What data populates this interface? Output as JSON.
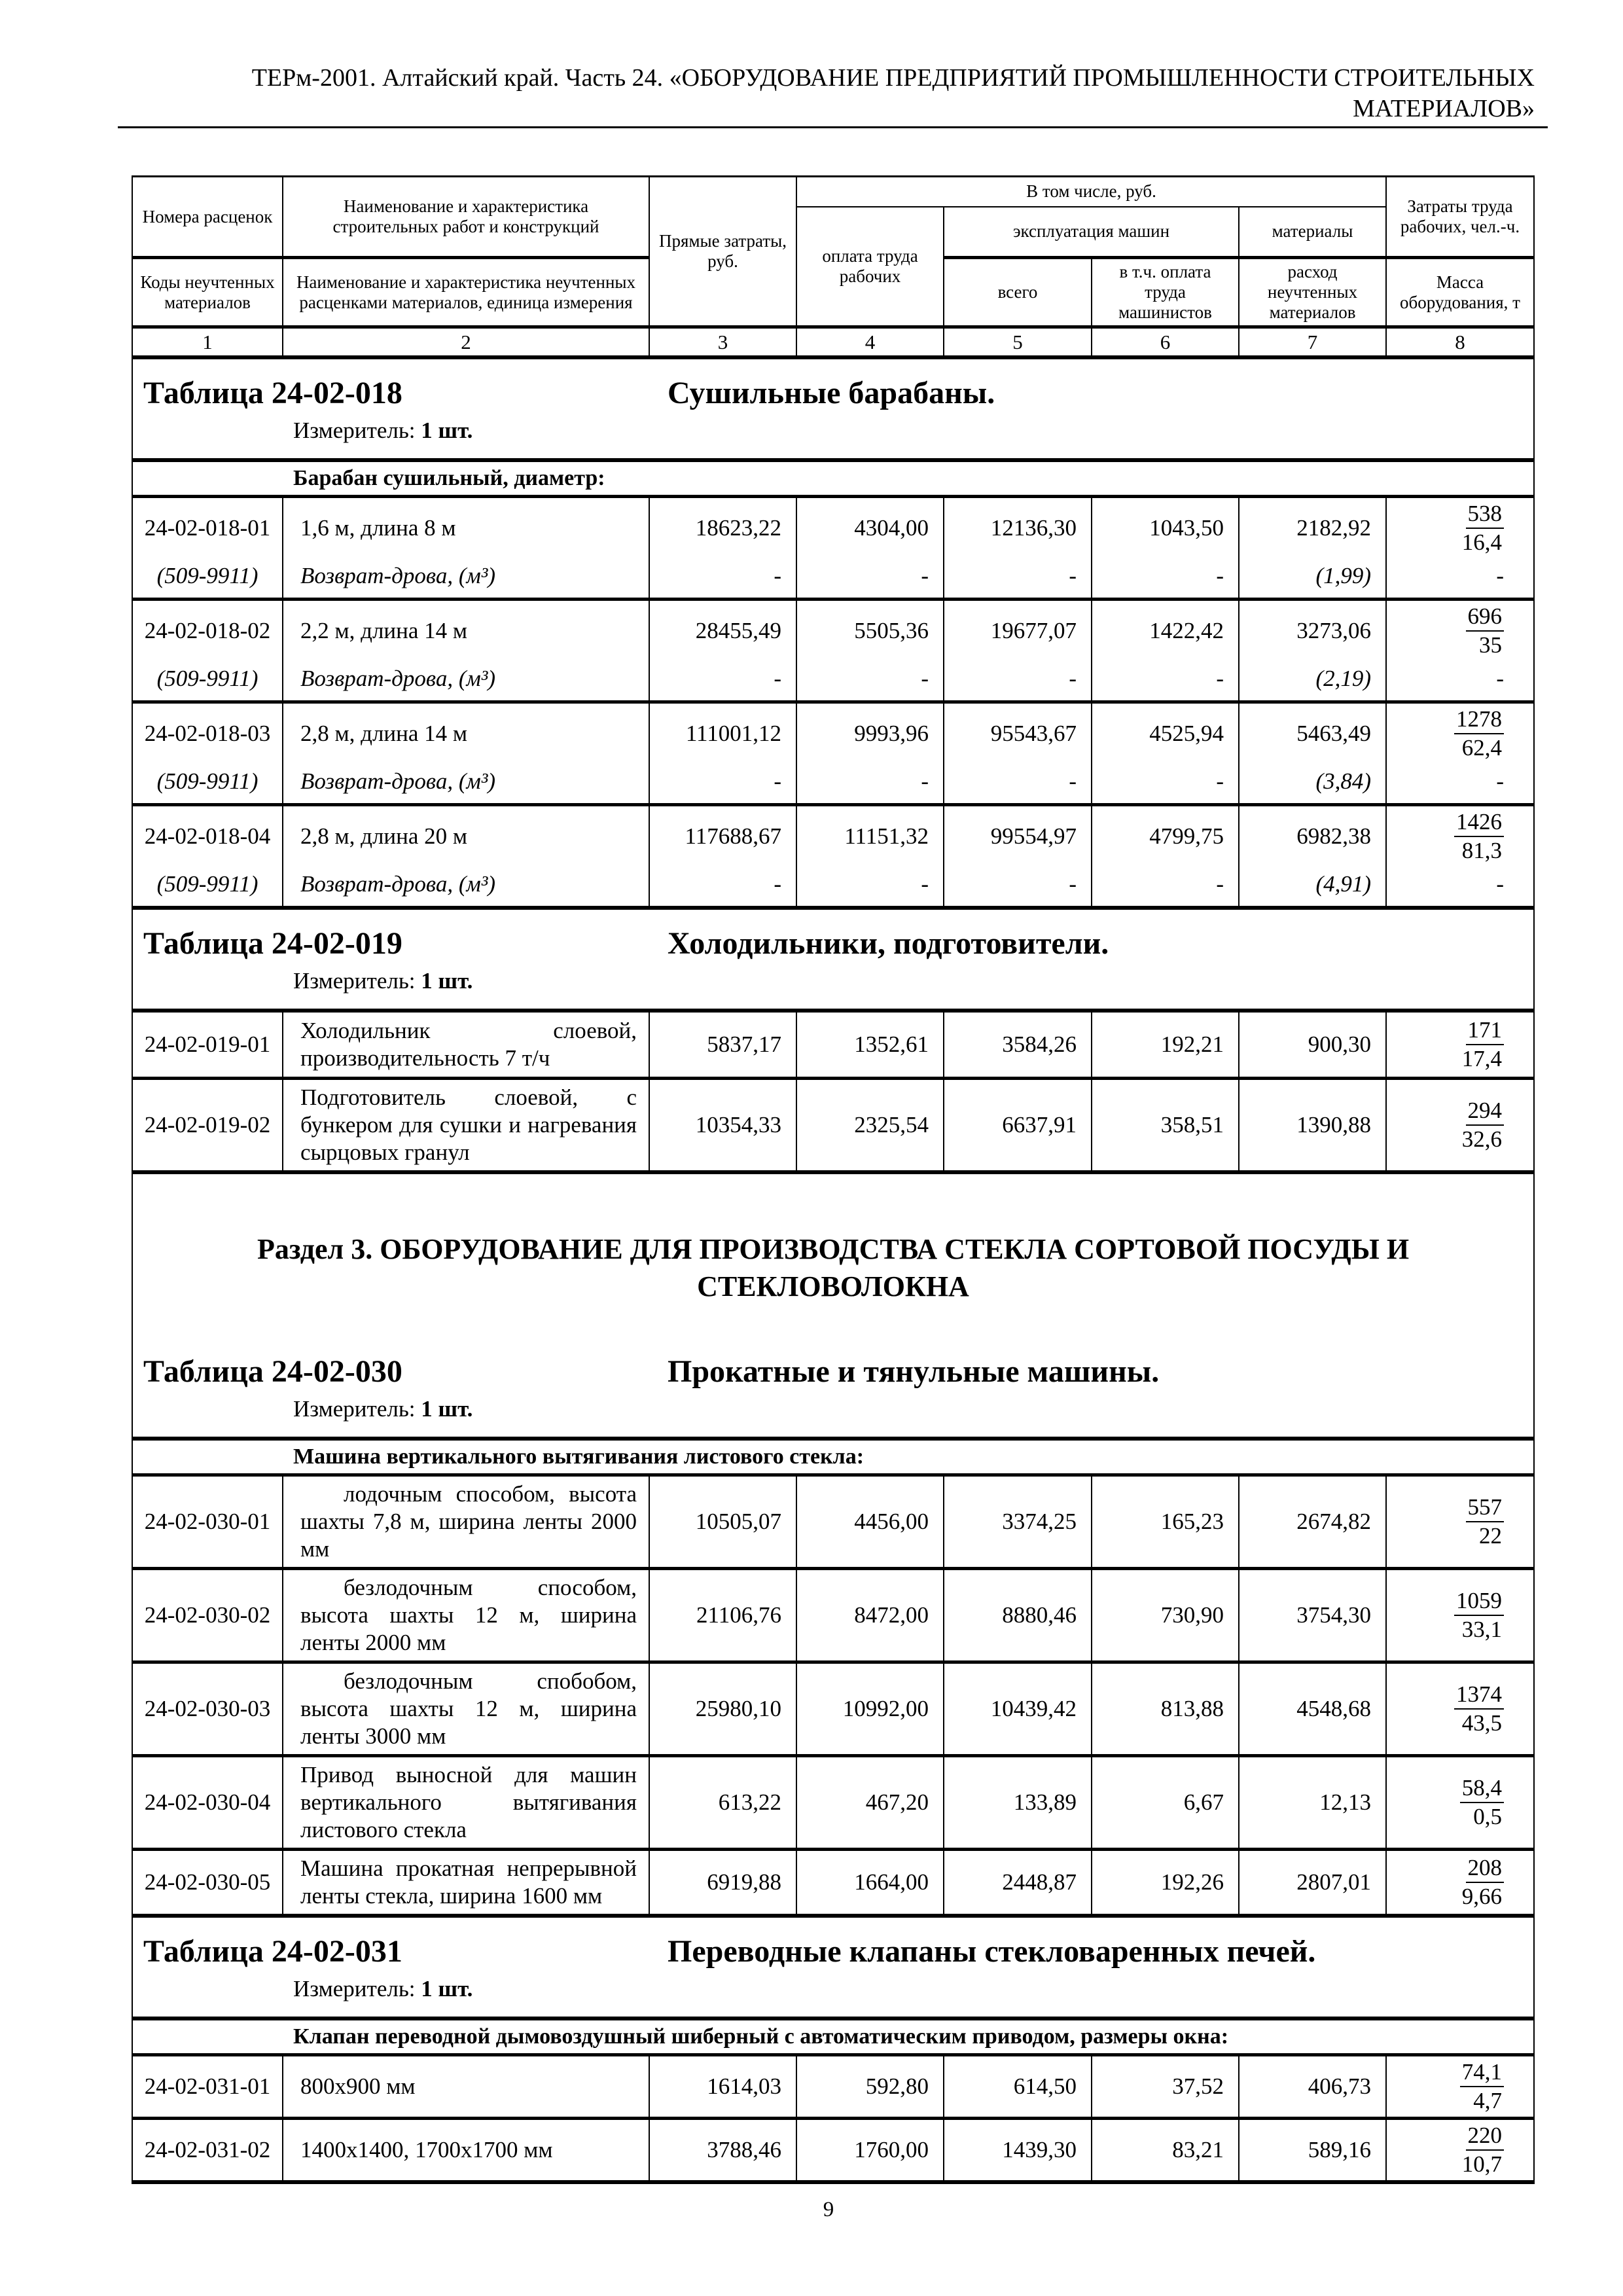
{
  "page": {
    "header_title": "ТЕРм-2001. Алтайский край. Часть 24. «ОБОРУДОВАНИЕ ПРЕДПРИЯТИЙ ПРОМЫШЛЕННОСТИ СТРОИТЕЛЬНЫХ МАТЕРИАЛОВ»",
    "page_number": "9"
  },
  "table_header": {
    "col1_top": "Номера расценок",
    "col1_bottom": "Коды неучтенных материалов",
    "col2_top": "Наименование и характеристика строительных работ и конструкций",
    "col2_bottom": "Наименование и характеристика неучтенных расценками материалов, единица измерения",
    "col3": "Прямые затраты, руб.",
    "group_including": "В том числе, руб.",
    "col4": "оплата труда рабочих",
    "group_machines": "эксплуатация машин",
    "col5": "всего",
    "col6": "в т.ч. оплата труда машинистов",
    "col7_top": "материалы",
    "col7_bottom": "расход неучтенных материалов",
    "col8_top": "Затраты труда рабочих, чел.-ч.",
    "col8_bottom": "Масса оборудования, т",
    "numbers": [
      "1",
      "2",
      "3",
      "4",
      "5",
      "6",
      "7",
      "8"
    ]
  },
  "section3_heading": "Раздел 3. ОБОРУДОВАНИЕ ДЛЯ ПРОИЗВОДСТВА СТЕКЛА СОРТОВОЙ ПОСУДЫ И СТЕКЛОВОЛОКНА",
  "tables": [
    {
      "key": "t018",
      "title_label": "Таблица 24-02-018",
      "title_text": "Сушильные барабаны.",
      "measure_label": "Измеритель:",
      "measure_value": "1 шт.",
      "section_row": "Барабан сушильный, диаметр:",
      "rows": [
        {
          "code": "24-02-018-01",
          "desc": "1,6 м, длина 8 м",
          "values": [
            "18623,22",
            "4304,00",
            "12136,30",
            "1043,50",
            "2182,92"
          ],
          "labor_top": "538",
          "labor_bottom": "16,4",
          "ret": {
            "code": "(509-9911)",
            "desc": "Возврат-дрова, (м³)",
            "values": [
              "-",
              "-",
              "-",
              "-",
              "(1,99)"
            ],
            "labor": "-"
          }
        },
        {
          "code": "24-02-018-02",
          "desc": "2,2 м, длина 14 м",
          "values": [
            "28455,49",
            "5505,36",
            "19677,07",
            "1422,42",
            "3273,06"
          ],
          "labor_top": "696",
          "labor_bottom": "35",
          "ret": {
            "code": "(509-9911)",
            "desc": "Возврат-дрова, (м³)",
            "values": [
              "-",
              "-",
              "-",
              "-",
              "(2,19)"
            ],
            "labor": "-"
          }
        },
        {
          "code": "24-02-018-03",
          "desc": "2,8 м, длина 14 м",
          "values": [
            "111001,12",
            "9993,96",
            "95543,67",
            "4525,94",
            "5463,49"
          ],
          "labor_top": "1278",
          "labor_bottom": "62,4",
          "ret": {
            "code": "(509-9911)",
            "desc": "Возврат-дрова, (м³)",
            "values": [
              "-",
              "-",
              "-",
              "-",
              "(3,84)"
            ],
            "labor": "-"
          }
        },
        {
          "code": "24-02-018-04",
          "desc": "2,8 м, длина 20 м",
          "values": [
            "117688,67",
            "11151,32",
            "99554,97",
            "4799,75",
            "6982,38"
          ],
          "labor_top": "1426",
          "labor_bottom": "81,3",
          "ret": {
            "code": "(509-9911)",
            "desc": "Возврат-дрова, (м³)",
            "values": [
              "-",
              "-",
              "-",
              "-",
              "(4,91)"
            ],
            "labor": "-"
          }
        }
      ]
    },
    {
      "key": "t019",
      "title_label": "Таблица 24-02-019",
      "title_text": "Холодильники, подготовители.",
      "measure_label": "Измеритель:",
      "measure_value": "1 шт.",
      "section_row": null,
      "rows": [
        {
          "code": "24-02-019-01",
          "desc": "Холодильник слоевой, производительность 7 т/ч",
          "values": [
            "5837,17",
            "1352,61",
            "3584,26",
            "192,21",
            "900,30"
          ],
          "labor_top": "171",
          "labor_bottom": "17,4"
        },
        {
          "code": "24-02-019-02",
          "desc": "Подготовитель слоевой, с бункером для сушки и нагревания сырцовых гранул",
          "values": [
            "10354,33",
            "2325,54",
            "6637,91",
            "358,51",
            "1390,88"
          ],
          "labor_top": "294",
          "labor_bottom": "32,6"
        }
      ]
    },
    {
      "key": "t030",
      "show_section_heading_before": true,
      "title_label": "Таблица 24-02-030",
      "title_text": "Прокатные и тянульные машины.",
      "measure_label": "Измеритель:",
      "measure_value": "1 шт.",
      "section_row": "Машина вертикального вытягивания листового стекла:",
      "rows": [
        {
          "code": "24-02-030-01",
          "desc": "лодочным способом, высота шахты 7,8 м, ширина ленты 2000 мм",
          "indent": true,
          "values": [
            "10505,07",
            "4456,00",
            "3374,25",
            "165,23",
            "2674,82"
          ],
          "labor_top": "557",
          "labor_bottom": "22"
        },
        {
          "code": "24-02-030-02",
          "desc": "безлодочным способом, высота шахты 12 м, ширина ленты 2000 мм",
          "indent": true,
          "values": [
            "21106,76",
            "8472,00",
            "8880,46",
            "730,90",
            "3754,30"
          ],
          "labor_top": "1059",
          "labor_bottom": "33,1"
        },
        {
          "code": "24-02-030-03",
          "desc": "безлодочным спобобом, высота шахты 12 м, ширина ленты 3000 мм",
          "indent": true,
          "values": [
            "25980,10",
            "10992,00",
            "10439,42",
            "813,88",
            "4548,68"
          ],
          "labor_top": "1374",
          "labor_bottom": "43,5"
        },
        {
          "code": "24-02-030-04",
          "desc": "Привод выносной для машин вертикального вытягивания листового стекла",
          "values": [
            "613,22",
            "467,20",
            "133,89",
            "6,67",
            "12,13"
          ],
          "labor_top": "58,4",
          "labor_bottom": "0,5"
        },
        {
          "code": "24-02-030-05",
          "desc": "Машина прокатная непрерывной ленты стекла, ширина 1600 мм",
          "values": [
            "6919,88",
            "1664,00",
            "2448,87",
            "192,26",
            "2807,01"
          ],
          "labor_top": "208",
          "labor_bottom": "9,66"
        }
      ]
    },
    {
      "key": "t031",
      "title_label": "Таблица 24-02-031",
      "title_text": "Переводные клапаны стекловаренных печей.",
      "measure_label": "Измеритель:",
      "measure_value": "1 шт.",
      "section_row": "Клапан переводной дымовоздушный шиберный с автоматическим приводом, размеры окна:",
      "rows": [
        {
          "code": "24-02-031-01",
          "desc": "800х900 мм",
          "values": [
            "1614,03",
            "592,80",
            "614,50",
            "37,52",
            "406,73"
          ],
          "labor_top": "74,1",
          "labor_bottom": "4,7"
        },
        {
          "code": "24-02-031-02",
          "desc": "1400х1400, 1700х1700 мм",
          "values": [
            "3788,46",
            "1760,00",
            "1439,30",
            "83,21",
            "589,16"
          ],
          "labor_top": "220",
          "labor_bottom": "10,7"
        }
      ]
    }
  ]
}
